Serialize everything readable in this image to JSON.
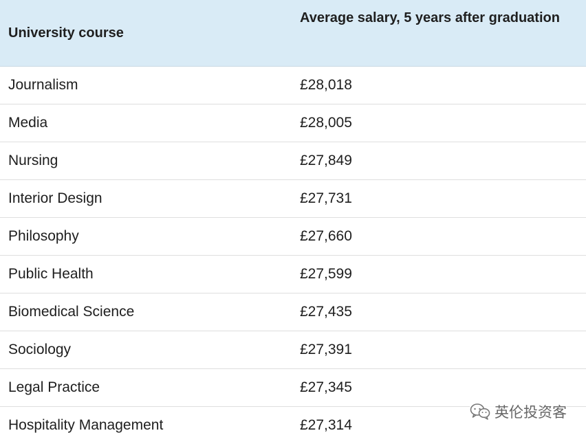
{
  "table": {
    "headers": {
      "course": "University course",
      "salary": "Average salary, 5 years after graduation"
    },
    "rows": [
      {
        "course": "Journalism",
        "salary": "£28,018"
      },
      {
        "course": "Media",
        "salary": "£28,005"
      },
      {
        "course": "Nursing",
        "salary": "£27,849"
      },
      {
        "course": "Interior Design",
        "salary": "£27,731"
      },
      {
        "course": "Philosophy",
        "salary": "£27,660"
      },
      {
        "course": "Public Health",
        "salary": "£27,599"
      },
      {
        "course": "Biomedical Science",
        "salary": "£27,435"
      },
      {
        "course": "Sociology",
        "salary": "£27,391"
      },
      {
        "course": "Legal Practice",
        "salary": "£27,345"
      },
      {
        "course": "Hospitality Management",
        "salary": "£27,314"
      }
    ]
  },
  "watermark": {
    "text": "英伦投资客",
    "icon": "wechat-icon"
  },
  "colors": {
    "header_bg": "#d9ebf6",
    "row_border": "#dedede",
    "text": "#1e1e1e"
  }
}
